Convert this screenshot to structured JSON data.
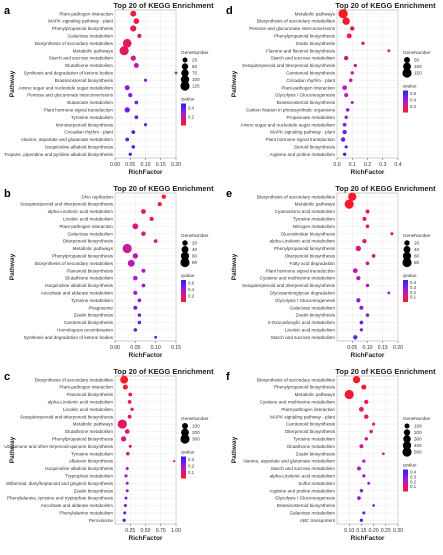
{
  "chart_data": [
    {
      "type": "scatter",
      "panel_label": "a",
      "title": "Top 20 of KEGG Enrichment",
      "xlabel": "RichFactor",
      "ylabel": "Pathway",
      "xlim": [
        0.0,
        0.2
      ],
      "xticks": [
        "0.00",
        "0.05",
        "0.10",
        "0.15",
        "0.20"
      ],
      "legend": {
        "size_title": "GeneNumber",
        "size_values": [
          "25",
          "50",
          "75",
          "100",
          "125"
        ],
        "size_max": 125,
        "color_title": "qvalue",
        "color_ticks": [
          "0.4",
          "0.2"
        ],
        "color_range": [
          0.0,
          0.5
        ]
      },
      "pathways": [
        "Plant-pathogen interaction",
        "MAPK signaling pathway - plant",
        "Phenylpropanoid biosynthesis",
        "Galactose metabolism",
        "Biosynthesis of secondary metabolites",
        "Metabolic pathways",
        "Starch and sucrose metabolism",
        "Glutathione metabolism",
        "Synthesis and degradation of ketone bodies",
        "Brassinosteroid biosynthesis",
        "Amino sugar and nucleotide sugar metabolism",
        "Pentose and glucuronate interconversions",
        "Butanoate metabolism",
        "Plant hormone signal transduction",
        "Tyrosine metabolism",
        "Monoterpenoid biosynthesis",
        "Circadian rhythm - plant",
        "Alanine, aspartate and glutamate metabolism",
        "Isoquinoline alkaloid biosynthesis",
        "Tropane, piperidine and pyridine alkaloid biosynthesis"
      ],
      "rich_factor": [
        0.06,
        0.07,
        0.06,
        0.08,
        0.04,
        0.03,
        0.06,
        0.07,
        0.2,
        0.1,
        0.04,
        0.05,
        0.07,
        0.04,
        0.07,
        0.1,
        0.06,
        0.04,
        0.06,
        0.05
      ],
      "gene_number": [
        40,
        35,
        45,
        15,
        110,
        125,
        30,
        25,
        3,
        6,
        25,
        15,
        10,
        30,
        10,
        5,
        10,
        10,
        8,
        6
      ],
      "qvalue": [
        0.05,
        0.06,
        0.08,
        0.1,
        0.09,
        0.1,
        0.15,
        0.2,
        0.25,
        0.3,
        0.32,
        0.33,
        0.35,
        0.38,
        0.38,
        0.4,
        0.42,
        0.44,
        0.45,
        0.47
      ]
    },
    {
      "type": "scatter",
      "panel_label": "d",
      "title": "Top 20 of KEGG Enrichment",
      "xlabel": "RichFactor",
      "ylabel": "Pathway",
      "xlim": [
        0.0,
        0.4
      ],
      "xticks": [
        "0.0",
        "0.1",
        "0.2",
        "0.3",
        "0.4"
      ],
      "legend": {
        "size_title": "GeneNumber",
        "size_values": [
          "50",
          "100",
          "150"
        ],
        "size_max": 150,
        "color_title": "qvalue",
        "color_ticks": [
          "0.6",
          "0.4",
          "0.2"
        ],
        "color_range": [
          0.0,
          0.7
        ]
      },
      "pathways": [
        "Metabolic pathways",
        "Biosynthesis of secondary metabolites",
        "Pentose and glucuronate interconversions",
        "Phenylpropanoid biosynthesis",
        "Zeatin biosynthesis",
        "Flavone and flavonol biosynthesis",
        "Starch and sucrose metabolism",
        "Sesquiterpenoid and triterpenoid biosynthesis",
        "Carotenoid biosynthesis",
        "Circadian rhythm - plant",
        "Plant-pathogen interaction",
        "Glycolysis / Gluconeogenesis",
        "Brassinosteroid biosynthesis",
        "Carbon fixation in photosynthetic organisms",
        "Propanoate metabolism",
        "Amino sugar and nucleotide sugar metabolism",
        "MAPK signaling pathway - plant",
        "Plant hormone signal transduction",
        "Steroid biosynthesis",
        "Arginine and proline metabolism"
      ],
      "rich_factor": [
        0.04,
        0.06,
        0.1,
        0.08,
        0.17,
        0.34,
        0.06,
        0.12,
        0.1,
        0.09,
        0.05,
        0.06,
        0.1,
        0.07,
        0.06,
        0.05,
        0.05,
        0.04,
        0.06,
        0.05
      ],
      "gene_number": [
        150,
        90,
        20,
        30,
        8,
        4,
        20,
        8,
        8,
        10,
        25,
        15,
        5,
        10,
        8,
        12,
        20,
        20,
        6,
        8
      ],
      "qvalue": [
        0.02,
        0.05,
        0.08,
        0.1,
        0.12,
        0.15,
        0.2,
        0.22,
        0.25,
        0.28,
        0.3,
        0.33,
        0.36,
        0.4,
        0.42,
        0.45,
        0.5,
        0.55,
        0.6,
        0.65
      ]
    },
    {
      "type": "scatter",
      "panel_label": "b",
      "title": "Top 20 of KEGG Enrichment",
      "xlabel": "RichFactor",
      "ylabel": "Pathway",
      "xlim": [
        0.0,
        0.15
      ],
      "xticks": [
        "0.00",
        "0.05",
        "0.10",
        "0.15"
      ],
      "legend": {
        "size_title": "GeneNumber",
        "size_values": [
          "20",
          "40",
          "60",
          "80"
        ],
        "size_max": 80,
        "color_title": "qvalue",
        "color_ticks": [
          "0.6",
          "0.4",
          "0.2"
        ],
        "color_range": [
          0.0,
          0.7
        ]
      },
      "pathways": [
        "DNA replication",
        "Sesquiterpenoid and triterpenoid biosynthesis",
        "alpha-Linolenic acid metabolism",
        "Linoleic acid metabolism",
        "Plant-pathogen interaction",
        "Galactose metabolism",
        "Diterpenoid biosynthesis",
        "Metabolic pathways",
        "Phenylpropanoid biosynthesis",
        "Biosynthesis of secondary metabolites",
        "Flavonoid biosynthesis",
        "Glutathione metabolism",
        "Isoquinoline alkaloid biosynthesis",
        "Ascorbate and aldarate metabolism",
        "Tyrosine metabolism",
        "Phagosome",
        "Zeatin biosynthesis",
        "Carotenoid biosynthesis",
        "Homologous recombination",
        "Synthesis and degradation of ketone bodies"
      ],
      "rich_factor": [
        0.12,
        0.11,
        0.07,
        0.09,
        0.05,
        0.07,
        0.1,
        0.03,
        0.05,
        0.04,
        0.07,
        0.05,
        0.07,
        0.05,
        0.06,
        0.05,
        0.06,
        0.06,
        0.05,
        0.1
      ],
      "gene_number": [
        10,
        10,
        14,
        10,
        25,
        12,
        6,
        80,
        20,
        40,
        8,
        12,
        6,
        8,
        6,
        8,
        5,
        5,
        5,
        2
      ],
      "qvalue": [
        0.05,
        0.1,
        0.12,
        0.15,
        0.18,
        0.2,
        0.22,
        0.25,
        0.28,
        0.3,
        0.33,
        0.36,
        0.4,
        0.42,
        0.45,
        0.5,
        0.52,
        0.55,
        0.6,
        0.65
      ]
    },
    {
      "type": "scatter",
      "panel_label": "e",
      "title": "Top 20 of KEGG Enrichment",
      "xlabel": "RichFactor",
      "ylabel": "Pathway",
      "xlim": [
        0.0,
        0.2
      ],
      "xticks": [
        "0.05",
        "0.10",
        "0.15",
        "0.20"
      ],
      "legend": {
        "size_title": "GeneNumber",
        "size_values": [
          "20",
          "40",
          "60",
          "80"
        ],
        "size_max": 80,
        "color_title": "qvalue",
        "color_ticks": [
          "0.4",
          "0.3",
          "0.2",
          "0.1"
        ],
        "color_range": [
          0.0,
          0.45
        ]
      },
      "pathways": [
        "Biosynthesis of secondary metabolites",
        "Metabolic pathways",
        "Cyanoamino acid metabolism",
        "Tyrosine metabolism",
        "Nitrogen metabolism",
        "Glucosinolate biosynthesis",
        "alpha-Linolenic acid metabolism",
        "Phenylpropanoid biosynthesis",
        "Diterpenoid biosynthesis",
        "Fatty acid degradation",
        "Plant hormone signal transduction",
        "Cysteine and methionine metabolism",
        "Sesquiterpenoid and triterpenoid biosynthesis",
        "Glycosaminoglycan degradation",
        "Glycolysis / Gluconeogenesis",
        "Galactose metabolism",
        "Zeatin biosynthesis",
        "2-Oxocarboxylic acid metabolism",
        "Linoleic acid metabolism",
        "Starch and sucrose metabolism"
      ],
      "rich_factor": [
        0.05,
        0.04,
        0.1,
        0.09,
        0.1,
        0.18,
        0.09,
        0.07,
        0.12,
        0.1,
        0.06,
        0.07,
        0.1,
        0.17,
        0.07,
        0.08,
        0.1,
        0.08,
        0.08,
        0.06
      ],
      "gene_number": [
        60,
        80,
        8,
        8,
        6,
        3,
        10,
        20,
        6,
        6,
        15,
        10,
        5,
        2,
        10,
        8,
        5,
        6,
        4,
        10
      ],
      "qvalue": [
        0.01,
        0.02,
        0.05,
        0.06,
        0.08,
        0.1,
        0.1,
        0.12,
        0.14,
        0.15,
        0.18,
        0.2,
        0.22,
        0.24,
        0.26,
        0.28,
        0.3,
        0.32,
        0.34,
        0.36
      ]
    },
    {
      "type": "scatter",
      "panel_label": "c",
      "title": "Top 20 of KEGG Enrichment",
      "xlabel": "RichFactor",
      "ylabel": "Pathway",
      "xlim": [
        0.0,
        1.0
      ],
      "xticks": [
        "0.25",
        "0.50",
        "0.75",
        "1.00"
      ],
      "legend": {
        "size_title": "GeneNumber",
        "size_values": [
          "100",
          "200",
          "300"
        ],
        "size_max": 300,
        "color_title": "qvalue",
        "color_ticks": [
          "0.3",
          "0.2",
          "0.1"
        ],
        "color_range": [
          0.0,
          0.35
        ]
      },
      "pathways": [
        "Biosynthesis of secondary metabolites",
        "Plant-pathogen interaction",
        "Flavonoid biosynthesis",
        "alpha-Linolenic acid metabolism",
        "Linoleic acid metabolism",
        "Sesquiterpenoid and triterpenoid biosynthesis",
        "Metabolic pathways",
        "Glutathione metabolism",
        "Phenylpropanoid biosynthesis",
        "Ubiquinone and other terpenoid-quinone biosynthesis",
        "Tyrosine metabolism",
        "Aflatoxin biosynthesis",
        "Isoquinoline alkaloid biosynthesis",
        "Tryptophan metabolism",
        "Stilbenoid, diarylheptanoid and gingerol biosynthesis",
        "Zeatin biosynthesis",
        "Phenylalanine, tyrosine and tryptophan biosynthesis",
        "Ascorbate and aldarate metabolism",
        "Phenylalanine metabolism",
        "Peroxisome"
      ],
      "rich_factor": [
        0.15,
        0.17,
        0.25,
        0.24,
        0.28,
        0.24,
        0.12,
        0.2,
        0.14,
        0.25,
        0.21,
        0.97,
        0.2,
        0.18,
        0.2,
        0.2,
        0.18,
        0.17,
        0.16,
        0.15
      ],
      "gene_number": [
        200,
        60,
        25,
        25,
        15,
        25,
        300,
        50,
        70,
        12,
        20,
        2,
        12,
        15,
        10,
        10,
        10,
        12,
        12,
        15
      ],
      "qvalue": [
        0.01,
        0.02,
        0.03,
        0.04,
        0.05,
        0.06,
        0.07,
        0.08,
        0.09,
        0.1,
        0.12,
        0.14,
        0.16,
        0.18,
        0.2,
        0.22,
        0.24,
        0.26,
        0.28,
        0.3
      ]
    },
    {
      "type": "scatter",
      "panel_label": "f",
      "title": "Top 20 of KEGG Enrichment",
      "xlabel": "RichFactor",
      "ylabel": "Pathway",
      "xlim": [
        0.05,
        0.3
      ],
      "xticks": [
        "0.10",
        "0.15",
        "0.20",
        "0.25",
        "0.30"
      ],
      "legend": {
        "size_title": "GeneNumber",
        "size_values": [
          "100",
          "200",
          "300",
          "400",
          "500"
        ],
        "size_max": 500,
        "color_title": "qvalue",
        "color_ticks": [
          "0.4",
          "0.3",
          "0.2",
          "0.1"
        ],
        "color_range": [
          0.0,
          0.45
        ]
      },
      "pathways": [
        "Biosynthesis of secondary metabolites",
        "Phenylpropanoid biosynthesis",
        "Metabolic pathways",
        "Cysteine and methionine metabolism",
        "Plant-pathogen interaction",
        "MAPK signaling pathway - plant",
        "Carotenoid biosynthesis",
        "Diterpenoid biosynthesis",
        "Tyrosine metabolism",
        "Glutathione metabolism",
        "Zeatin biosynthesis",
        "Alanine, aspartate and glutamate metabolism",
        "Starch and sucrose metabolism",
        "alpha-Linolenic acid metabolism",
        "Sulfur metabolism",
        "Arginine and proline metabolism",
        "Glycolysis / Gluconeogenesis",
        "Brassinosteroid biosynthesis",
        "Galactose metabolism",
        "ABC transporters"
      ],
      "rich_factor": [
        0.13,
        0.16,
        0.1,
        0.17,
        0.15,
        0.17,
        0.2,
        0.19,
        0.17,
        0.15,
        0.24,
        0.16,
        0.14,
        0.16,
        0.18,
        0.15,
        0.14,
        0.2,
        0.16,
        0.15
      ],
      "gene_number": [
        280,
        100,
        500,
        60,
        90,
        70,
        20,
        30,
        30,
        50,
        10,
        25,
        50,
        25,
        15,
        30,
        35,
        10,
        20,
        25
      ],
      "qvalue": [
        0.01,
        0.02,
        0.03,
        0.05,
        0.06,
        0.08,
        0.1,
        0.12,
        0.14,
        0.15,
        0.18,
        0.2,
        0.22,
        0.24,
        0.26,
        0.28,
        0.3,
        0.32,
        0.35,
        0.38
      ]
    }
  ]
}
